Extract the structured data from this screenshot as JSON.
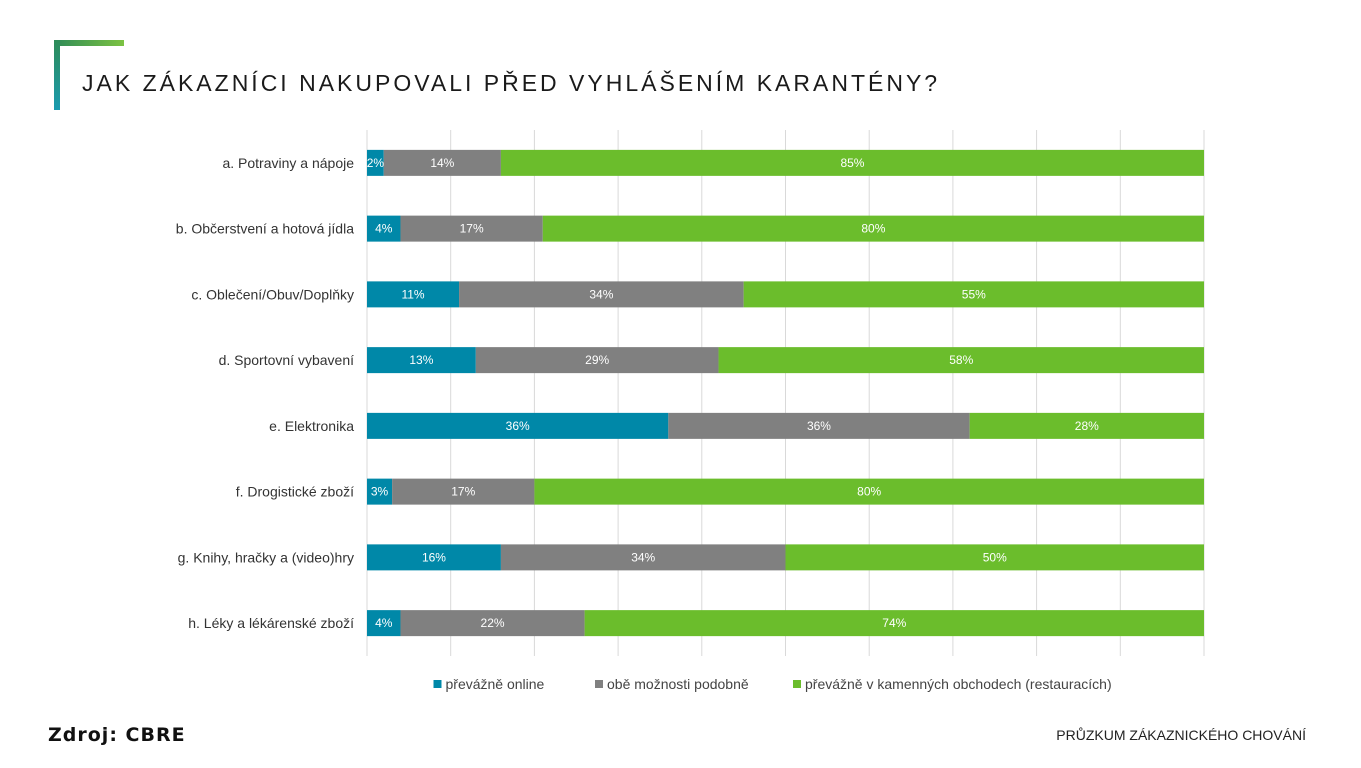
{
  "title": "JAK ZÁKAZNÍCI NAKUPOVALI PŘED VYHLÁŠENÍM KARANTÉNY?",
  "source": "Zdroj: CBRE",
  "footer": "PRŮZKUM ZÁKAZNICKÉHO CHOVÁNÍ",
  "colors": {
    "accent_green": "#7cc242",
    "accent_teal": "#1a9bb0"
  },
  "chart_data": {
    "type": "bar",
    "orientation": "horizontal",
    "stacked": true,
    "percent": true,
    "xlim": [
      0,
      100
    ],
    "grid": "vertical",
    "legend_position": "bottom",
    "categories": [
      "a. Potraviny a nápoje",
      "b. Občerstvení a hotová jídla",
      "c. Oblečení/Obuv/Doplňky",
      "d. Sportovní vybavení",
      "e. Elektronika",
      "f. Drogistické zboží",
      "g. Knihy, hračky a (video)hry",
      "h. Léky a lékárenské zboží"
    ],
    "series": [
      {
        "name": "převážně online",
        "color": "#0088a8",
        "values": [
          2,
          4,
          11,
          13,
          36,
          3,
          16,
          4
        ]
      },
      {
        "name": "obě možnosti podobně",
        "color": "#808080",
        "values": [
          14,
          17,
          34,
          29,
          36,
          17,
          34,
          22
        ]
      },
      {
        "name": "převážně v kamenných obchodech (restauracích)",
        "color": "#6bbd2c",
        "values": [
          85,
          80,
          55,
          58,
          28,
          80,
          50,
          74
        ]
      }
    ]
  }
}
